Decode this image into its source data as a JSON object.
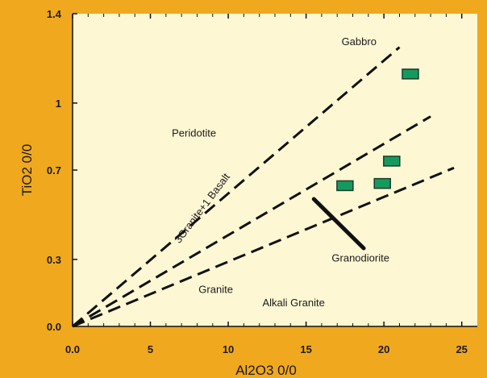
{
  "chart_data": {
    "type": "scatter",
    "title": "",
    "xlabel": "Al2O3 0/0",
    "ylabel": "TiO2 0/0",
    "xlim": [
      0,
      26
    ],
    "ylim": [
      0,
      1.4
    ],
    "x_ticks": [
      {
        "value": 0,
        "label": "0.0"
      },
      {
        "value": 5,
        "label": "5"
      },
      {
        "value": 10,
        "label": "10"
      },
      {
        "value": 15,
        "label": "15"
      },
      {
        "value": 20,
        "label": "20"
      },
      {
        "value": 25,
        "label": "25"
      }
    ],
    "y_ticks": [
      {
        "value": 0,
        "label": "0.0"
      },
      {
        "value": 0.3,
        "label": "0.3"
      },
      {
        "value": 0.7,
        "label": "0.7"
      },
      {
        "value": 1,
        "label": "1"
      },
      {
        "value": 1.4,
        "label": "1.4"
      }
    ],
    "grid": false,
    "colors": {
      "background": "#ffffff",
      "frame": "#f0a81e",
      "plot_area": "#fdf7d4",
      "points": "#159a5e",
      "point_edge": "#1b3d2a",
      "lines": "#111111"
    },
    "points": [
      {
        "x": 21.7,
        "y": 1.13
      },
      {
        "x": 20.5,
        "y": 0.74
      },
      {
        "x": 19.9,
        "y": 0.64
      },
      {
        "x": 17.5,
        "y": 0.63
      }
    ],
    "dashed_boundaries": [
      [
        [
          0,
          0
        ],
        [
          21,
          1.25
        ]
      ],
      [
        [
          0,
          0
        ],
        [
          23,
          0.94
        ]
      ],
      [
        [
          0,
          0
        ],
        [
          24.5,
          0.71
        ]
      ]
    ],
    "trend_segment": [
      [
        15.5,
        0.57
      ],
      [
        18.7,
        0.35
      ]
    ],
    "region_labels": [
      {
        "text": "Gabbro",
        "x": 18.4,
        "y": 1.26,
        "rotate": 0
      },
      {
        "text": "Peridotite",
        "x": 7.8,
        "y": 0.85,
        "rotate": 0
      },
      {
        "text": "3Granite+1 Basalt",
        "x": 8.5,
        "y": 0.52,
        "rotate": -53
      },
      {
        "text": "Granodiorite",
        "x": 18.5,
        "y": 0.29,
        "rotate": 0
      },
      {
        "text": "Granite",
        "x": 9.2,
        "y": 0.15,
        "rotate": 0
      },
      {
        "text": "Alkali Granite",
        "x": 14.2,
        "y": 0.09,
        "rotate": 0
      }
    ]
  }
}
